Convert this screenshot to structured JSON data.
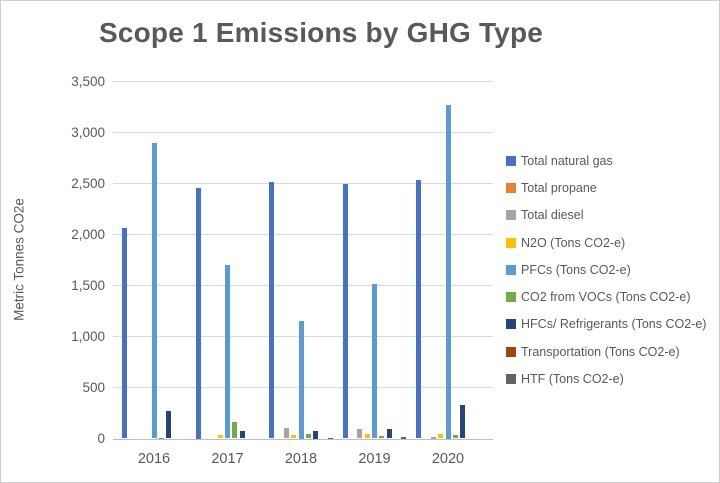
{
  "frame": {
    "background": "#ffffff",
    "border_color": "#cfcfcf"
  },
  "palette": {
    "gridline": "#d9d9d9",
    "axis_line": "#bfbfbf",
    "text": "#595959"
  },
  "chart_data": {
    "type": "bar",
    "title": "Scope 1 Emissions by GHG Type",
    "xlabel": "",
    "ylabel": "Metric Tonnes CO2e",
    "ylim": [
      0,
      3500
    ],
    "ytick_step": 500,
    "ytick_labels": [
      "0",
      "500",
      "1,000",
      "1,500",
      "2,000",
      "2,500",
      "3,000",
      "3,500"
    ],
    "grid": true,
    "legend_position": "right",
    "categories": [
      "2016",
      "2017",
      "2018",
      "2019",
      "2020"
    ],
    "series": [
      {
        "name": "Total natural gas",
        "color": "#4472C4",
        "values": [
          2060,
          2450,
          2510,
          2490,
          2530
        ]
      },
      {
        "name": "Total propane",
        "color": "#ED7D31",
        "values": [
          0,
          0,
          0,
          0,
          0
        ]
      },
      {
        "name": "Total diesel",
        "color": "#A5A5A5",
        "values": [
          0,
          0,
          100,
          95,
          15
        ]
      },
      {
        "name": "N2O (Tons CO2-e)",
        "color": "#FFC000",
        "values": [
          0,
          30,
          30,
          40,
          45
        ]
      },
      {
        "name": "PFCs (Tons CO2-e)",
        "color": "#5B9BD5",
        "values": [
          2890,
          1700,
          1150,
          1510,
          3270
        ]
      },
      {
        "name": "CO2 from VOCs (Tons CO2-e)",
        "color": "#70AD47",
        "values": [
          10,
          160,
          40,
          25,
          35
        ]
      },
      {
        "name": "HFCs/ Refrigerants (Tons CO2-e)",
        "color": "#264478",
        "values": [
          270,
          75,
          70,
          95,
          325
        ]
      },
      {
        "name": "Transportation (Tons CO2-e)",
        "color": "#9E480E",
        "values": [
          0,
          0,
          0,
          0,
          0
        ]
      },
      {
        "name": "HTF (Tons CO2-e)",
        "color": "#636363",
        "values": [
          0,
          0,
          10,
          15,
          0
        ]
      }
    ]
  }
}
